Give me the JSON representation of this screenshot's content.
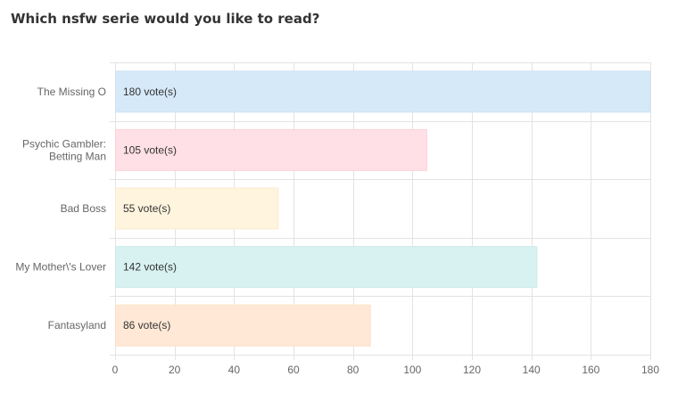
{
  "chart_data": {
    "type": "bar",
    "orientation": "horizontal",
    "title": "Which nsfw serie would you like to read?",
    "categories": [
      [
        "The Missing O"
      ],
      [
        "Psychic Gambler:",
        "Betting Man"
      ],
      [
        "Bad Boss"
      ],
      [
        "My Mother\\'s Lover"
      ],
      [
        "Fantasyland"
      ]
    ],
    "values": [
      180,
      105,
      55,
      142,
      86
    ],
    "value_labels": [
      "180 vote(s)",
      "105 vote(s)",
      "55 vote(s)",
      "142 vote(s)",
      "86 vote(s)"
    ],
    "colors": {
      "fill": [
        "#d6e9f8",
        "#ffe0e6",
        "#fff4de",
        "#d8f1f1",
        "#ffe9d6"
      ],
      "stroke": [
        "#cfe3f5",
        "#fbd3dc",
        "#fbecd0",
        "#cdecec",
        "#fbe0c8"
      ]
    },
    "xlim": [
      0,
      180
    ],
    "xticks": [
      0,
      20,
      40,
      60,
      80,
      100,
      120,
      140,
      160,
      180
    ],
    "grid": true,
    "xlabel": "",
    "ylabel": ""
  }
}
